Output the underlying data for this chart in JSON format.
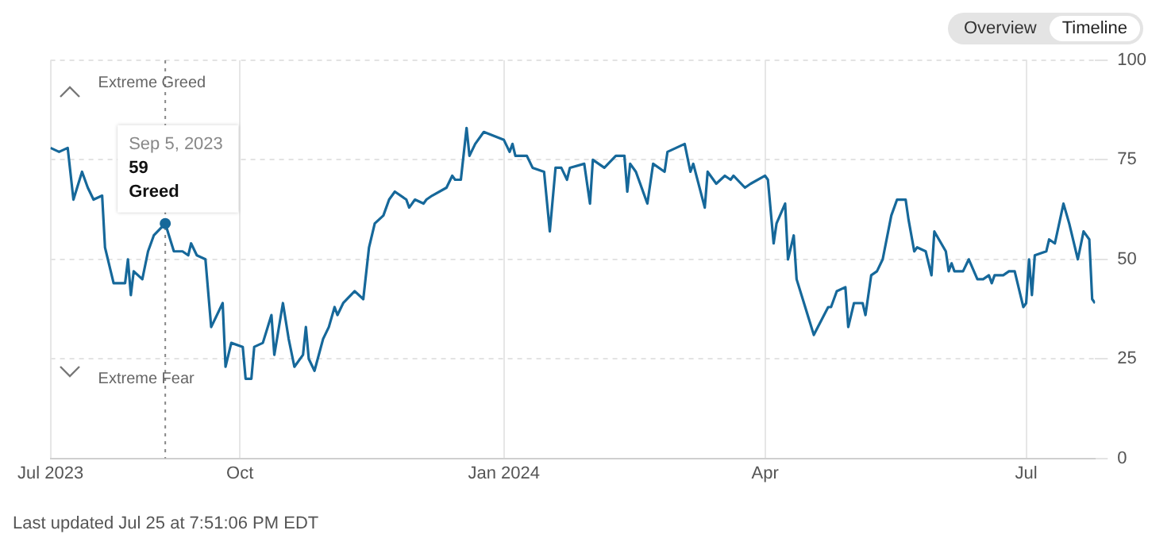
{
  "chart_data": {
    "type": "line",
    "xlim": [
      "2023-07-27",
      "2024-07-25"
    ],
    "xticks": [
      {
        "value": "2023-07-27",
        "label": "Jul 2023"
      },
      {
        "value": "2023-10-01",
        "label": "Oct"
      },
      {
        "value": "2024-01-01",
        "label": "Jan 2024"
      },
      {
        "value": "2024-04-01",
        "label": "Apr"
      },
      {
        "value": "2024-07-01",
        "label": "Jul"
      }
    ],
    "ylim": [
      0,
      100
    ],
    "yticks": [
      0,
      25,
      50,
      75,
      100
    ],
    "grid": true,
    "x": [
      "2023-07-27",
      "2023-07-30",
      "2023-08-02",
      "2023-08-04",
      "2023-08-07",
      "2023-08-09",
      "2023-08-11",
      "2023-08-14",
      "2023-08-15",
      "2023-08-18",
      "2023-08-22",
      "2023-08-23",
      "2023-08-24",
      "2023-08-25",
      "2023-08-28",
      "2023-08-30",
      "2023-09-01",
      "2023-09-05",
      "2023-09-08",
      "2023-09-11",
      "2023-09-13",
      "2023-09-14",
      "2023-09-16",
      "2023-09-19",
      "2023-09-21",
      "2023-09-25",
      "2023-09-26",
      "2023-09-28",
      "2023-10-02",
      "2023-10-03",
      "2023-10-05",
      "2023-10-06",
      "2023-10-09",
      "2023-10-12",
      "2023-10-13",
      "2023-10-16",
      "2023-10-18",
      "2023-10-20",
      "2023-10-23",
      "2023-10-24",
      "2023-10-25",
      "2023-10-27",
      "2023-10-30",
      "2023-11-01",
      "2023-11-03",
      "2023-11-04",
      "2023-11-06",
      "2023-11-10",
      "2023-11-13",
      "2023-11-15",
      "2023-11-17",
      "2023-11-20",
      "2023-11-22",
      "2023-11-24",
      "2023-11-28",
      "2023-11-29",
      "2023-12-01",
      "2023-12-04",
      "2023-12-05",
      "2023-12-07",
      "2023-12-12",
      "2023-12-14",
      "2023-12-15",
      "2023-12-17",
      "2023-12-19",
      "2023-12-20",
      "2023-12-22",
      "2023-12-25",
      "2024-01-01",
      "2024-01-03",
      "2024-01-04",
      "2024-01-05",
      "2024-01-09",
      "2024-01-11",
      "2024-01-15",
      "2024-01-17",
      "2024-01-19",
      "2024-01-21",
      "2024-01-23",
      "2024-01-24",
      "2024-01-29",
      "2024-01-31",
      "2024-02-01",
      "2024-02-05",
      "2024-02-09",
      "2024-02-12",
      "2024-02-13",
      "2024-02-14",
      "2024-02-16",
      "2024-02-20",
      "2024-02-22",
      "2024-02-26",
      "2024-02-27",
      "2024-03-01",
      "2024-03-04",
      "2024-03-06",
      "2024-03-07",
      "2024-03-11",
      "2024-03-12",
      "2024-03-15",
      "2024-03-18",
      "2024-03-20",
      "2024-03-21",
      "2024-03-25",
      "2024-03-27",
      "2024-04-01",
      "2024-04-02",
      "2024-04-04",
      "2024-04-05",
      "2024-04-08",
      "2024-04-09",
      "2024-04-11",
      "2024-04-12",
      "2024-04-18",
      "2024-04-23",
      "2024-04-24",
      "2024-04-26",
      "2024-04-29",
      "2024-04-30",
      "2024-05-02",
      "2024-05-05",
      "2024-05-06",
      "2024-05-08",
      "2024-05-10",
      "2024-05-12",
      "2024-05-15",
      "2024-05-17",
      "2024-05-20",
      "2024-05-21",
      "2024-05-23",
      "2024-05-24",
      "2024-05-27",
      "2024-05-29",
      "2024-05-30",
      "2024-06-03",
      "2024-06-04",
      "2024-06-05",
      "2024-06-06",
      "2024-06-09",
      "2024-06-11",
      "2024-06-14",
      "2024-06-16",
      "2024-06-18",
      "2024-06-19",
      "2024-06-20",
      "2024-06-23",
      "2024-06-25",
      "2024-06-27",
      "2024-06-30",
      "2024-07-01",
      "2024-07-02",
      "2024-07-03",
      "2024-07-04",
      "2024-07-08",
      "2024-07-09",
      "2024-07-11",
      "2024-07-14",
      "2024-07-16",
      "2024-07-19",
      "2024-07-21",
      "2024-07-23",
      "2024-07-24",
      "2024-07-25"
    ],
    "series": [
      {
        "color": "#16689a",
        "values": [
          78,
          77,
          78,
          65,
          72,
          68,
          65,
          66,
          53,
          44,
          44,
          50,
          41,
          47,
          45,
          52,
          56,
          59,
          52,
          52,
          51,
          54,
          51,
          50,
          33,
          39,
          23,
          29,
          28,
          20,
          20,
          28,
          29,
          36,
          26,
          39,
          30,
          23,
          26,
          33,
          25,
          22,
          30,
          33,
          38,
          36,
          39,
          42,
          40,
          53,
          59,
          61,
          65,
          67,
          65,
          63,
          65,
          64,
          65,
          66,
          68,
          71,
          70,
          70,
          83,
          76,
          79,
          82,
          80,
          77,
          79,
          76,
          76,
          73,
          72,
          57,
          73,
          73,
          70,
          73,
          74,
          64,
          75,
          73,
          76,
          76,
          67,
          74,
          72,
          64,
          74,
          72,
          77,
          78,
          79,
          72,
          74,
          63,
          72,
          69,
          71,
          70,
          71,
          68,
          69,
          71,
          70,
          54,
          59,
          64,
          50,
          56,
          45,
          31,
          38,
          38,
          42,
          43,
          33,
          39,
          39,
          36,
          46,
          47,
          50,
          61,
          65,
          65,
          60,
          52,
          53,
          52,
          46,
          57,
          52,
          47,
          49,
          47,
          47,
          50,
          45,
          45,
          46,
          44,
          46,
          46,
          47,
          47,
          38,
          39,
          50,
          41,
          51,
          52,
          55,
          54,
          64,
          59,
          50,
          57,
          55,
          40,
          39
        ]
      }
    ],
    "ref_lines": [
      {
        "axis": "x",
        "value": "2023-09-05",
        "line_style": "dotted",
        "color": "#888888"
      }
    ],
    "annotations": [
      "Overview",
      "Timeline",
      "Extreme Greed",
      "Extreme Fear",
      "Last updated Jul 25 at 7:51:06 PM EDT",
      {
        "text": "Sep 5, 2023\n59\nGreed",
        "x": "2023-09-05",
        "y": 59
      }
    ]
  }
}
